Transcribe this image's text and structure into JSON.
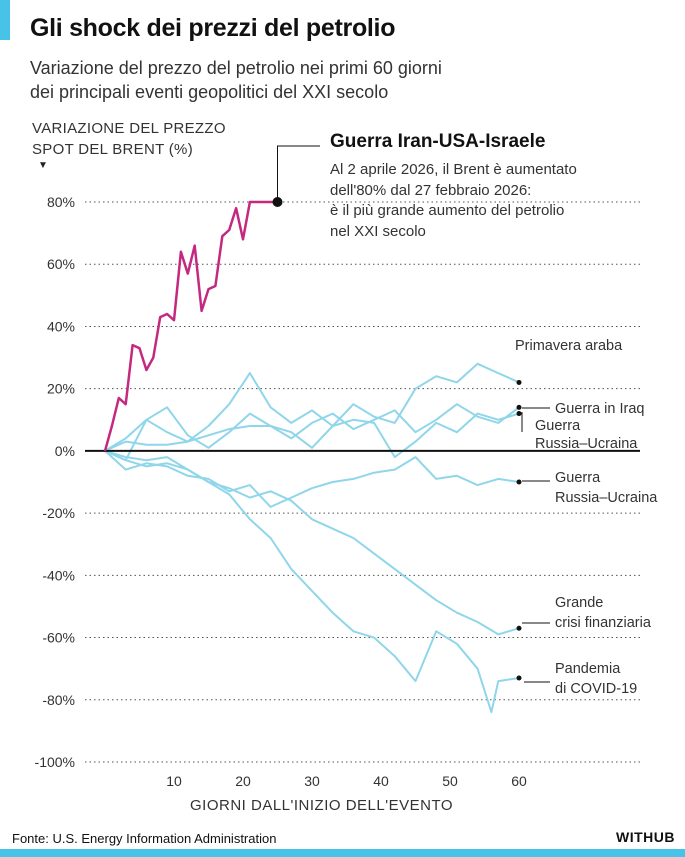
{
  "header": {
    "title": "Gli shock dei prezzi del petrolio",
    "subtitle_lines": [
      "Variazione del prezzo del petrolio nei primi 60 giorni",
      "dei principali eventi geopolitici del XXI secolo"
    ]
  },
  "chart_data": {
    "type": "line",
    "ylabel_lines": [
      "VARIAZIONE DEL PREZZO",
      "SPOT DEL BRENT (%)"
    ],
    "xlabel": "GIORNI DALL'INIZIO DELL'EVENTO",
    "xlim": [
      0,
      65
    ],
    "ylim": [
      -100,
      85
    ],
    "x_ticks": [
      10,
      20,
      30,
      40,
      50,
      60
    ],
    "y_ticks": [
      80,
      60,
      40,
      20,
      0,
      -20,
      -40,
      -60,
      -80,
      -100
    ],
    "y_tick_labels": [
      "80%",
      "60%",
      "40%",
      "20%",
      "0%",
      "-20%",
      "-40%",
      "-60%",
      "-80%",
      "-100%"
    ],
    "grid": "horizontal dotted",
    "highlight_color": "#c4297f",
    "background_series_color": "#8fd6ea",
    "highlight": {
      "name": "Guerra Iran-USA-Israele",
      "annotation_lines": [
        "Al 2 aprile 2026, il Brent è aumentato",
        "dell'80% dal 27 febbraio 2026:",
        "è il più grande aumento del petrolio",
        "nel XXI secolo"
      ],
      "end_value": 80
    },
    "series": [
      {
        "name": "Guerra Iran-USA-Israele",
        "highlight": true,
        "x": [
          0,
          1,
          2,
          3,
          4,
          5,
          6,
          7,
          8,
          9,
          10,
          11,
          12,
          13,
          14,
          15,
          16,
          17,
          18,
          19,
          20,
          21,
          22,
          23,
          24,
          25
        ],
        "y": [
          0,
          8,
          17,
          15,
          34,
          33,
          26,
          30,
          43,
          44,
          42,
          64,
          57,
          66,
          45,
          52,
          53,
          69,
          71,
          78,
          68,
          80,
          80,
          80,
          80,
          80
        ]
      },
      {
        "name": "Primavera araba",
        "label_lines": [
          "Primavera araba"
        ],
        "x": [
          0,
          3,
          6,
          9,
          12,
          15,
          18,
          21,
          24,
          27,
          30,
          33,
          36,
          39,
          42,
          45,
          48,
          51,
          54,
          57,
          60
        ],
        "y": [
          0,
          4,
          10,
          6,
          3,
          8,
          15,
          25,
          14,
          9,
          13,
          8,
          15,
          11,
          9,
          20,
          24,
          22,
          28,
          25,
          22
        ]
      },
      {
        "name": "Guerra in Iraq",
        "label_lines": [
          "Guerra in Iraq"
        ],
        "x": [
          0,
          3,
          6,
          9,
          12,
          15,
          18,
          21,
          24,
          27,
          30,
          33,
          36,
          39,
          42,
          45,
          48,
          51,
          54,
          57,
          60
        ],
        "y": [
          0,
          -3,
          10,
          14,
          5,
          1,
          6,
          12,
          8,
          4,
          9,
          12,
          7,
          10,
          13,
          6,
          10,
          15,
          11,
          9,
          14
        ]
      },
      {
        "name": "Guerra Russia–Ucraina 2014",
        "label_lines": [
          "Guerra",
          "Russia–Ucraina"
        ],
        "x": [
          0,
          3,
          6,
          9,
          12,
          15,
          18,
          21,
          24,
          27,
          30,
          33,
          36,
          39,
          42,
          45,
          48,
          51,
          54,
          57,
          60
        ],
        "y": [
          0,
          3,
          2,
          2,
          3,
          5,
          7,
          8,
          8,
          6,
          1,
          8,
          10,
          9,
          -2,
          3,
          9,
          6,
          12,
          10,
          12
        ]
      },
      {
        "name": "Guerra Russia–Ucraina 2022",
        "label_lines": [
          "Guerra",
          "Russia–Ucraina"
        ],
        "x": [
          0,
          3,
          6,
          9,
          12,
          15,
          18,
          21,
          24,
          27,
          30,
          33,
          36,
          39,
          42,
          45,
          48,
          51,
          54,
          57,
          60
        ],
        "y": [
          0,
          -6,
          -4,
          -5,
          -8,
          -9,
          -13,
          -11,
          -18,
          -15,
          -12,
          -10,
          -9,
          -7,
          -6,
          -2,
          -9,
          -8,
          -11,
          -9,
          -10
        ]
      },
      {
        "name": "Grande crisi finanziaria",
        "label_lines": [
          "Grande",
          "crisi finanziaria"
        ],
        "x": [
          0,
          3,
          6,
          9,
          12,
          15,
          18,
          21,
          24,
          27,
          30,
          33,
          36,
          39,
          42,
          45,
          48,
          51,
          54,
          57,
          60
        ],
        "y": [
          0,
          -3,
          -5,
          -4,
          -6,
          -10,
          -12,
          -15,
          -13,
          -16,
          -22,
          -25,
          -28,
          -33,
          -38,
          -43,
          -48,
          -52,
          -55,
          -59,
          -57
        ]
      },
      {
        "name": "Pandemia di COVID-19",
        "label_lines": [
          "Pandemia",
          "di COVID-19"
        ],
        "x": [
          0,
          3,
          6,
          9,
          12,
          15,
          18,
          21,
          24,
          27,
          30,
          33,
          36,
          39,
          42,
          45,
          48,
          51,
          54,
          56,
          57,
          60
        ],
        "y": [
          0,
          -2,
          -3,
          -2,
          -6,
          -10,
          -14,
          -22,
          -28,
          -38,
          -45,
          -52,
          -58,
          -60,
          -66,
          -74,
          -58,
          -62,
          -70,
          -84,
          -74,
          -73
        ]
      }
    ]
  },
  "footer": {
    "source": "Fonte: U.S. Energy Information Administration",
    "brand": "WITHUB"
  }
}
